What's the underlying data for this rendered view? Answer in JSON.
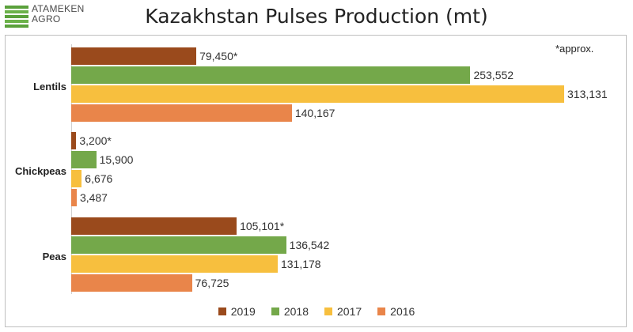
{
  "logo": {
    "line1": "ATAMEKEN",
    "line2": "AGRO",
    "color": "#5aa13b"
  },
  "note": "*approx.",
  "chart_data": {
    "type": "bar",
    "orientation": "horizontal",
    "title": "Kazakhstan Pulses Production (mt)",
    "categories": [
      "Lentils",
      "Chickpeas",
      "Peas"
    ],
    "series": [
      {
        "name": "2019",
        "color": "#9a4a1c",
        "values": [
          79450,
          3200,
          105101
        ],
        "labels": [
          "79,450*",
          "3,200*",
          "105,101*"
        ]
      },
      {
        "name": "2018",
        "color": "#74a84a",
        "values": [
          253552,
          15900,
          136542
        ],
        "labels": [
          "253,552",
          "15,900",
          "136,542"
        ]
      },
      {
        "name": "2017",
        "color": "#f7bf3e",
        "values": [
          313131,
          6676,
          131178
        ],
        "labels": [
          "313,131",
          "6,676",
          "131,178"
        ]
      },
      {
        "name": "2016",
        "color": "#e9854a",
        "values": [
          140167,
          3487,
          76725
        ],
        "labels": [
          "140,167",
          "3,487",
          "76,725"
        ]
      }
    ],
    "xlim": [
      0,
      313131
    ],
    "grid": false,
    "legend_position": "bottom"
  }
}
